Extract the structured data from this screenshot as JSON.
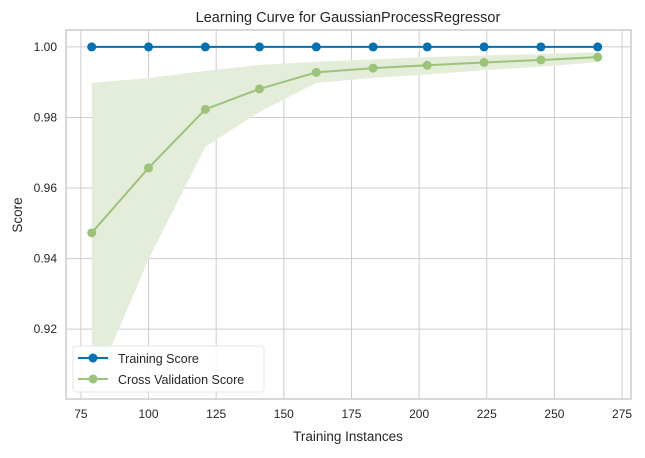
{
  "chart_data": {
    "type": "line",
    "title": "Learning Curve for GaussianProcessRegressor",
    "xlabel": "Training Instances",
    "ylabel": "Score",
    "xlim": [
      69.5,
      278.3
    ],
    "ylim": [
      0.9002,
      1.0048
    ],
    "xticks": [
      75,
      100,
      125,
      150,
      175,
      200,
      225,
      250,
      275
    ],
    "yticks": [
      0.92,
      0.94,
      0.96,
      0.98,
      1.0
    ],
    "ytick_labels": [
      "0.92",
      "0.94",
      "0.96",
      "0.98",
      "1.00"
    ],
    "grid": true,
    "legend_placement": "lower-left",
    "x": [
      79,
      100,
      121,
      141,
      162,
      183,
      203,
      224,
      245,
      266
    ],
    "series": [
      {
        "name": "Training Score",
        "color": "#0072b2",
        "values": [
          1.0,
          1.0,
          1.0,
          1.0,
          1.0,
          1.0,
          1.0,
          1.0,
          1.0,
          1.0
        ],
        "band_upper": [
          1.0,
          1.0,
          1.0,
          1.0,
          1.0,
          1.0,
          1.0,
          1.0,
          1.0,
          1.0
        ],
        "band_lower": [
          1.0,
          1.0,
          1.0,
          1.0,
          1.0,
          1.0,
          1.0,
          1.0,
          1.0,
          1.0
        ]
      },
      {
        "name": "Cross Validation Score",
        "color": "#9dc37a",
        "band_color": "#e4edd9",
        "values": [
          0.9473,
          0.9657,
          0.9823,
          0.9881,
          0.9928,
          0.994,
          0.9948,
          0.9956,
          0.9963,
          0.9971
        ],
        "band_upper": [
          0.9898,
          0.9912,
          0.9932,
          0.9949,
          0.9958,
          0.9965,
          0.9971,
          0.9976,
          0.998,
          0.9985
        ],
        "band_lower": [
          0.902,
          0.9398,
          0.9717,
          0.9816,
          0.9898,
          0.9912,
          0.9922,
          0.9934,
          0.9944,
          0.9957
        ]
      }
    ]
  }
}
